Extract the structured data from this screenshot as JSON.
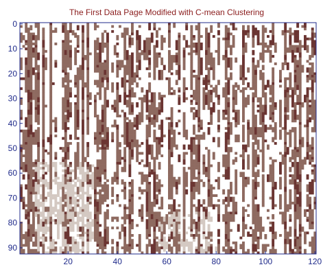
{
  "chart_data": {
    "type": "heatmap",
    "title": "The First Data Page Modified with C-mean Clustering",
    "xlabel": "",
    "ylabel": "",
    "xlim": [
      0.5,
      120.5
    ],
    "ylim": [
      92.5,
      -0.5
    ],
    "x_ticks": [
      20,
      40,
      60,
      80,
      100,
      120
    ],
    "y_ticks": [
      0,
      10,
      20,
      30,
      40,
      50,
      60,
      70,
      80,
      90
    ],
    "n_columns": 120,
    "n_rows": 93,
    "colormap": {
      "0": "#ffffff",
      "1": "#8e6a60",
      "2": "#6b3532",
      "3": "#d4c9c2"
    },
    "grid": false
  },
  "colors": {
    "title": "#8a1c1c",
    "tick_labels": "#1f2a8a",
    "axes": "#1f2a8a"
  }
}
